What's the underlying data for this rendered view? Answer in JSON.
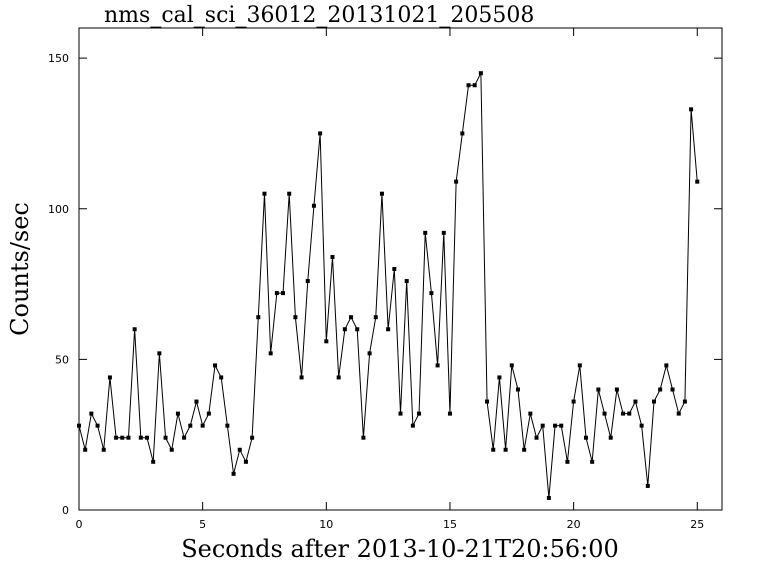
{
  "chart_data": {
    "type": "line",
    "title": "nms_cal_sci_36012_20131021_205508",
    "x_label": "Seconds after 2013-10-21T20:56:00",
    "y_label": "Counts/sec",
    "xlim": [
      0,
      26
    ],
    "ylim": [
      0,
      160
    ],
    "xticks": [
      0,
      5,
      10,
      15,
      20,
      25
    ],
    "yticks": [
      0,
      50,
      100,
      150
    ],
    "color": "#000000",
    "x": [
      0,
      0.25,
      0.5,
      0.75,
      1,
      1.25,
      1.5,
      1.75,
      2,
      2.25,
      2.5,
      2.75,
      3,
      3.25,
      3.5,
      3.75,
      4,
      4.25,
      4.5,
      4.75,
      5,
      5.25,
      5.5,
      5.75,
      6,
      6.25,
      6.5,
      6.75,
      7,
      7.25,
      7.5,
      7.75,
      8,
      8.25,
      8.5,
      8.75,
      9,
      9.25,
      9.5,
      9.75,
      10,
      10.25,
      10.5,
      10.75,
      11,
      11.25,
      11.5,
      11.75,
      12,
      12.25,
      12.5,
      12.75,
      13,
      13.25,
      13.5,
      13.75,
      14,
      14.25,
      14.5,
      14.75,
      15,
      15.25,
      15.5,
      15.75,
      16,
      16.25,
      16.5,
      16.75,
      17,
      17.25,
      17.5,
      17.75,
      18,
      18.25,
      18.5,
      18.75,
      19,
      19.25,
      19.5,
      19.75,
      20,
      20.25,
      20.5,
      20.75,
      21,
      21.25,
      21.5,
      21.75,
      22,
      22.25,
      22.5,
      22.75,
      23,
      23.25,
      23.5,
      23.75,
      24,
      24.25,
      24.5,
      24.75,
      25
    ],
    "values": [
      28,
      20,
      32,
      28,
      20,
      44,
      24,
      24,
      24,
      60,
      24,
      24,
      16,
      52,
      24,
      20,
      32,
      24,
      28,
      36,
      28,
      32,
      48,
      44,
      28,
      12,
      20,
      16,
      24,
      64,
      105,
      52,
      72,
      72,
      105,
      64,
      44,
      76,
      101,
      125,
      56,
      84,
      44,
      60,
      64,
      60,
      24,
      52,
      64,
      105,
      60,
      80,
      32,
      76,
      28,
      32,
      92,
      72,
      48,
      92,
      32,
      109,
      125,
      141,
      141,
      145,
      36,
      20,
      44,
      20,
      48,
      40,
      20,
      32,
      24,
      28,
      4,
      28,
      28,
      16,
      36,
      48,
      24,
      16,
      40,
      32,
      24,
      40,
      32,
      32,
      36,
      28,
      8,
      36,
      40,
      48,
      40,
      32,
      36,
      133,
      109
    ]
  }
}
